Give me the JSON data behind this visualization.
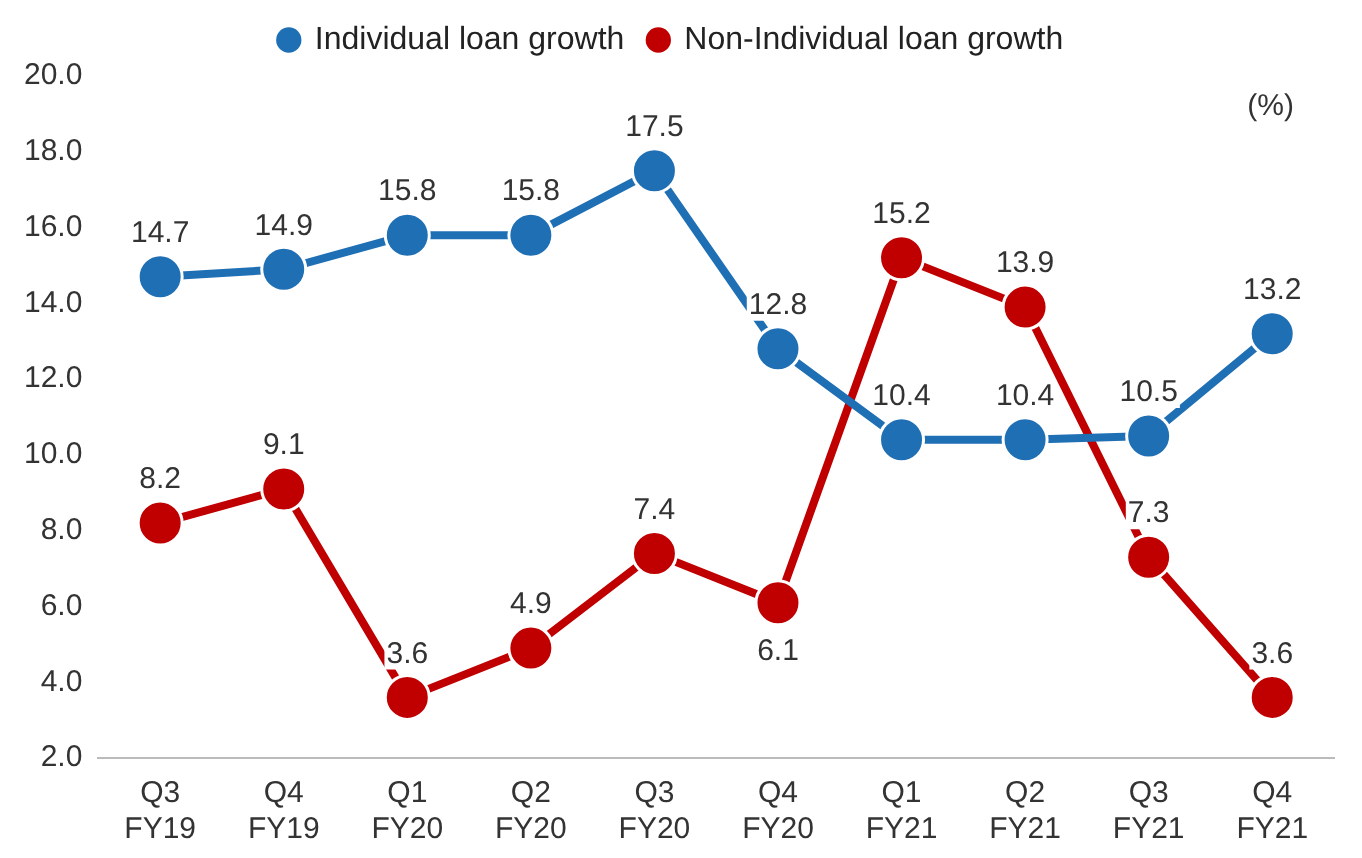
{
  "chart_data": {
    "type": "line",
    "categories": [
      "Q3 FY19",
      "Q4 FY19",
      "Q1 FY20",
      "Q2 FY20",
      "Q3 FY20",
      "Q4 FY20",
      "Q1 FY21",
      "Q2 FY21",
      "Q3 FY21",
      "Q4 FY21"
    ],
    "series": [
      {
        "name": "Individual loan growth",
        "color": "#1f6fb5",
        "values": [
          14.7,
          14.9,
          15.8,
          15.8,
          17.5,
          12.8,
          10.4,
          10.4,
          10.5,
          13.2
        ]
      },
      {
        "name": "Non-Individual loan growth",
        "color": "#c00000",
        "values": [
          8.2,
          9.1,
          3.6,
          4.9,
          7.4,
          6.1,
          15.2,
          13.9,
          7.3,
          3.6
        ]
      }
    ],
    "ylim": [
      2,
      20
    ],
    "yticks": [
      {
        "value": 2,
        "label": "2.0"
      },
      {
        "value": 4,
        "label": "4.0"
      },
      {
        "value": 6,
        "label": "6.0"
      },
      {
        "value": 8,
        "label": "8.0"
      },
      {
        "value": 10,
        "label": "10.0"
      },
      {
        "value": 12,
        "label": "12.0"
      },
      {
        "value": 14,
        "label": "14.0"
      },
      {
        "value": 16,
        "label": "16.0"
      },
      {
        "value": 18,
        "label": "18.0"
      },
      {
        "value": 20,
        "label": "20.0"
      }
    ],
    "annotations": [
      "(%)"
    ],
    "data_labels": true,
    "legend": "top",
    "grid": false,
    "marker": "circle",
    "line_style": "solid"
  }
}
